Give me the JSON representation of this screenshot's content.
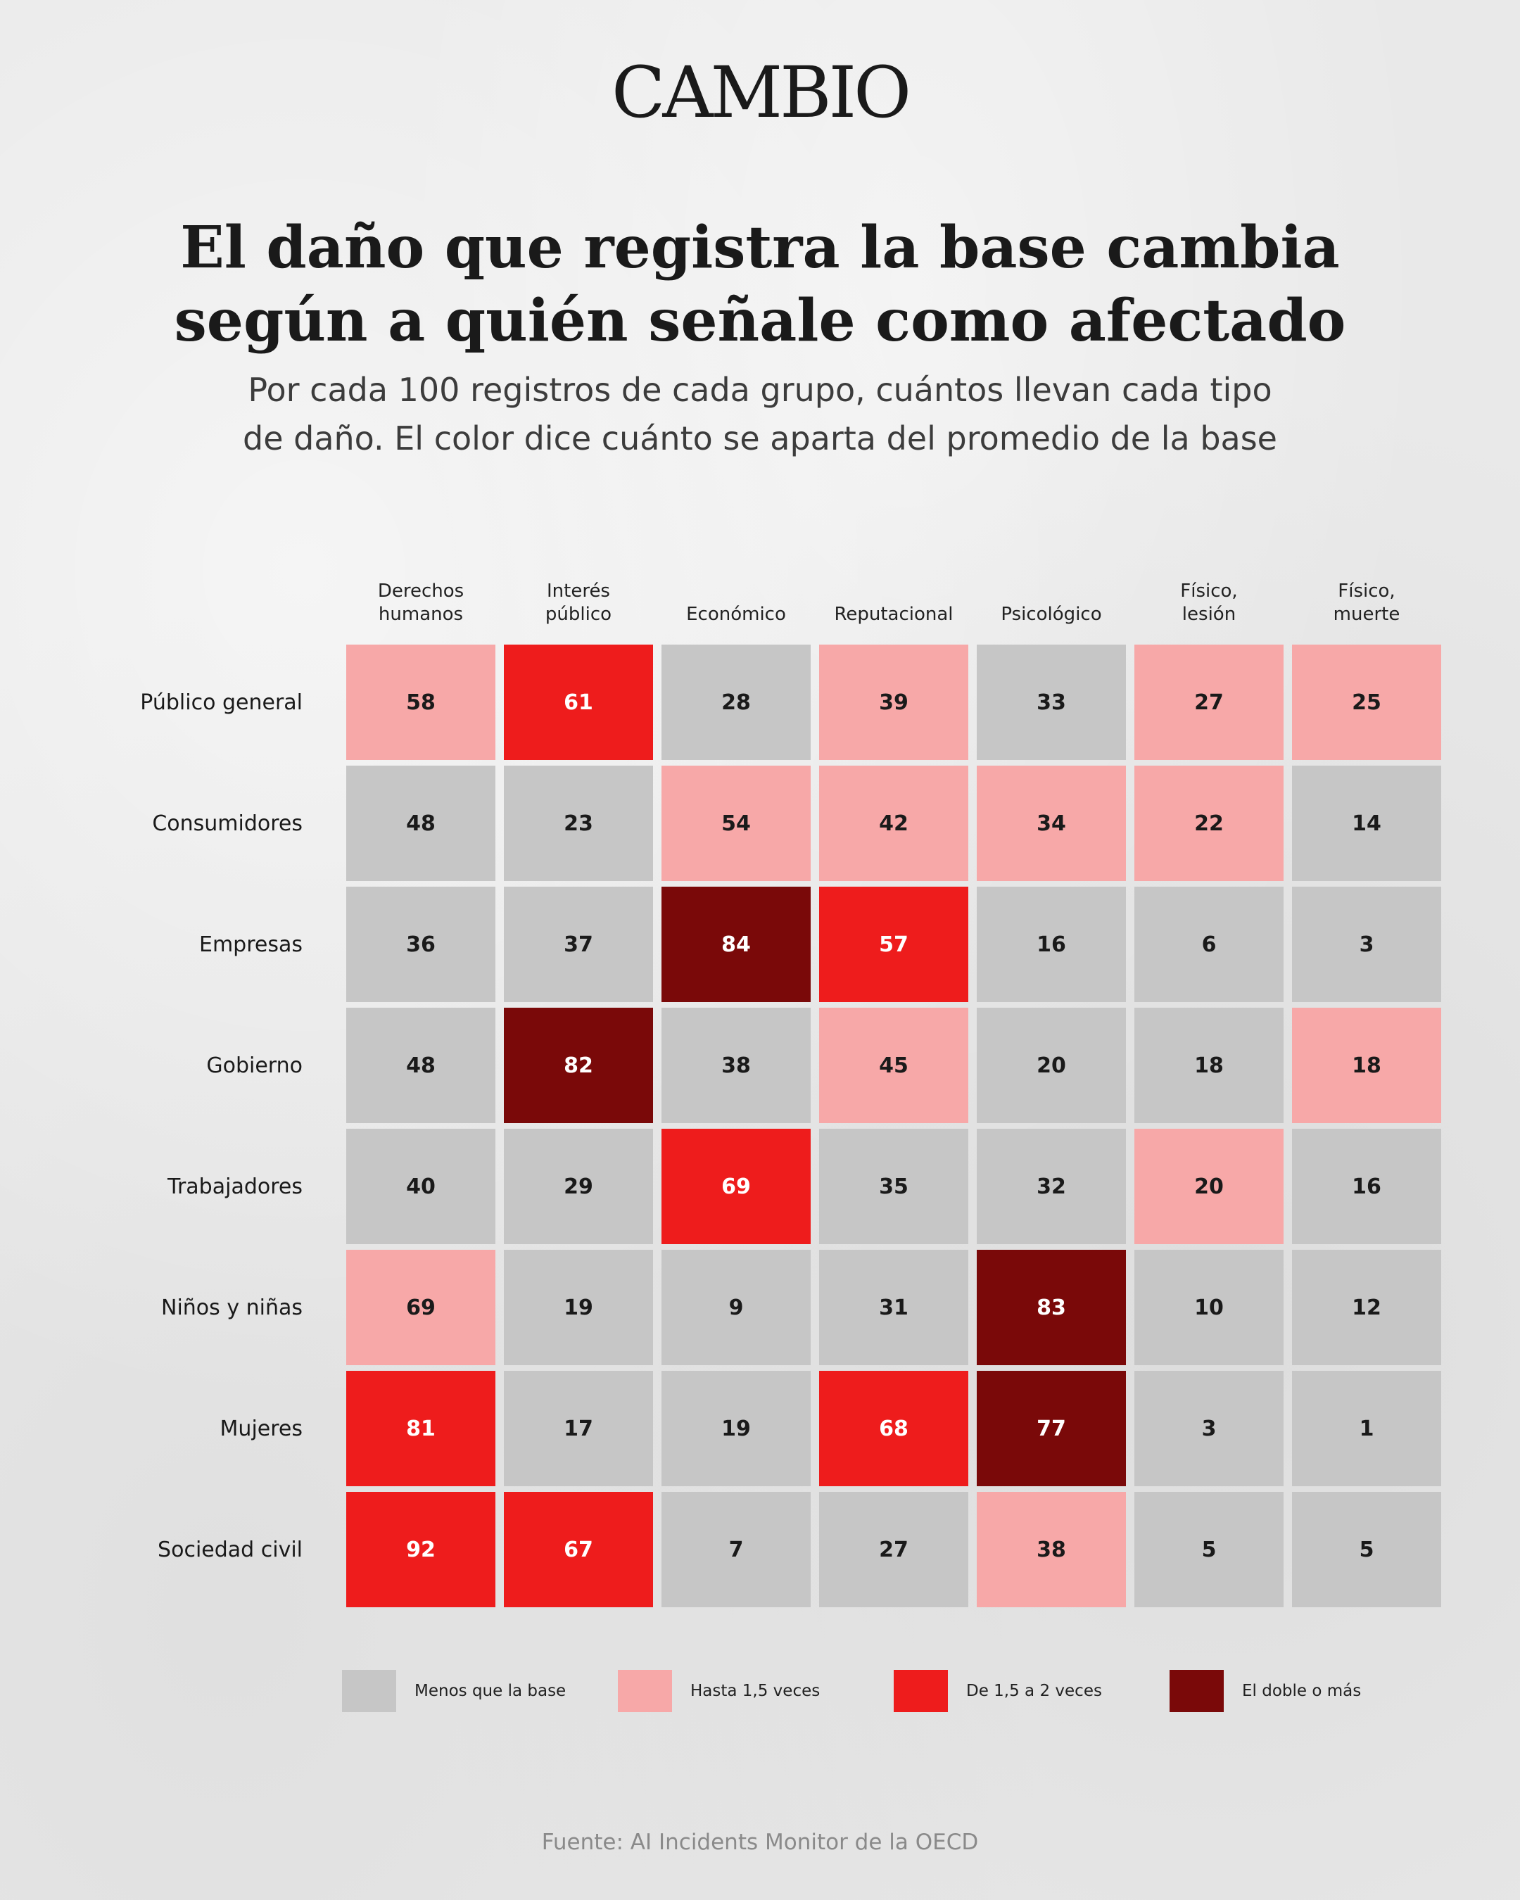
{
  "brand": "CAMBIO",
  "title_lines": [
    "El daño que registra la base cambia",
    "según a quién señale como afectado"
  ],
  "subtitle_lines": [
    "Por cada 100 registros de cada grupo, cuántos llevan cada tipo",
    "de daño. El color dice cuánto se aparta del promedio de la base"
  ],
  "source": "Fuente: AI Incidents Monitor de la OECD",
  "colors": {
    "below": "#c6c6c6",
    "up_to_1_5": "#f7a8a8",
    "1_5_to_2": "#ee1c1c",
    "double_or_more": "#7a0909",
    "dark_text": "#1a1a1a",
    "light_text": "#ffffff"
  },
  "chart_data": {
    "type": "heatmap",
    "columns": [
      [
        "Derechos",
        "humanos"
      ],
      [
        "Interés",
        "público"
      ],
      [
        "Económico"
      ],
      [
        "Reputacional"
      ],
      [
        "Psicológico"
      ],
      [
        "Físico,",
        "lesión"
      ],
      [
        "Físico,",
        "muerte"
      ]
    ],
    "rows": [
      "Público general",
      "Consumidores",
      "Empresas",
      "Gobierno",
      "Trabajadores",
      "Niños y niñas",
      "Mujeres",
      "Sociedad civil"
    ],
    "values": [
      [
        58,
        61,
        28,
        39,
        33,
        27,
        25
      ],
      [
        48,
        23,
        54,
        42,
        34,
        22,
        14
      ],
      [
        36,
        37,
        84,
        57,
        16,
        6,
        3
      ],
      [
        48,
        82,
        38,
        45,
        20,
        18,
        18
      ],
      [
        40,
        29,
        69,
        35,
        32,
        20,
        16
      ],
      [
        69,
        19,
        9,
        31,
        83,
        10,
        12
      ],
      [
        81,
        17,
        19,
        68,
        77,
        3,
        1
      ],
      [
        92,
        67,
        7,
        27,
        38,
        5,
        5
      ]
    ],
    "categories": [
      [
        1,
        2,
        0,
        1,
        0,
        1,
        1
      ],
      [
        0,
        0,
        1,
        1,
        1,
        1,
        0
      ],
      [
        0,
        0,
        3,
        2,
        0,
        0,
        0
      ],
      [
        0,
        3,
        0,
        1,
        0,
        0,
        1
      ],
      [
        0,
        0,
        2,
        0,
        0,
        1,
        0
      ],
      [
        1,
        0,
        0,
        0,
        3,
        0,
        0
      ],
      [
        2,
        0,
        0,
        2,
        3,
        0,
        0
      ],
      [
        2,
        2,
        0,
        0,
        1,
        0,
        0
      ]
    ],
    "legend": [
      {
        "label": "Menos que la base",
        "color": "#c6c6c6"
      },
      {
        "label": "Hasta 1,5 veces",
        "color": "#f7a8a8"
      },
      {
        "label": "De 1,5 a 2 veces",
        "color": "#ee1c1c"
      },
      {
        "label": "El doble o más",
        "color": "#7a0909"
      }
    ],
    "legend_position": "bottom"
  }
}
